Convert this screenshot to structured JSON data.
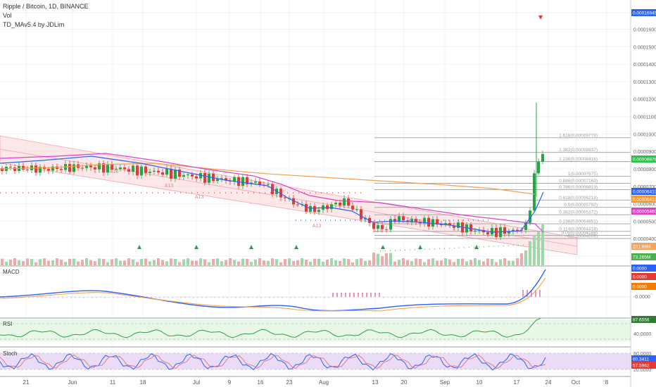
{
  "header": {
    "symbol_line": "Ripple / Bitcoin, 1D, BINANCE",
    "vol_label": "Vol",
    "indicator_label": "TD_MAv5.4 by JDLim"
  },
  "chart_data": [
    {
      "type": "candlestick",
      "pane": "price",
      "x_ticks": [
        "21",
        "Jun",
        "11",
        "18",
        "Jul",
        "9",
        "16",
        "23",
        "Aug",
        "13",
        "20",
        "Sep",
        "10",
        "17",
        "24",
        "Oct",
        "8"
      ],
      "y_ticks": [
        "0.00016945",
        "0.00016000",
        "0.00015000",
        "0.00014000",
        "0.00013000",
        "0.00012000",
        "0.00011000",
        "0.00010000",
        "0.00009000",
        "0.00008000",
        "0.00007000",
        "0.00006000",
        "0.00005000",
        "0.00004000",
        "0.00003000"
      ],
      "price_badges": [
        {
          "text": "0.00016945",
          "color": "#2962ff"
        },
        {
          "text": "0.00008878",
          "color": "#26c54a"
        },
        {
          "text": "0.00006413",
          "color": "#2962ff"
        },
        {
          "text": "0.00006413",
          "color": "#f59a32"
        },
        {
          "text": "0.00005460",
          "color": "#e040c8"
        },
        {
          "text": "181.99M",
          "color": "#f7a35c"
        },
        {
          "text": "73.265M",
          "color": "#4caf50"
        }
      ],
      "fib_levels": [
        {
          "label": "1.618(0.00009778)",
          "value": 9.778e-05
        },
        {
          "label": "1.382(0.00008937)",
          "value": 8.937e-05
        },
        {
          "label": "1.236(0.00008416)",
          "value": 8.416e-05
        },
        {
          "label": "1(0.00007575)",
          "value": 7.575e-05
        },
        {
          "label": "0.886(0.00007169)",
          "value": 7.169e-05
        },
        {
          "label": "0.786(0.00006813)",
          "value": 6.813e-05
        },
        {
          "label": "0.618(0.00006213)",
          "value": 6.213e-05
        },
        {
          "label": "0.5(0.00005792)",
          "value": 5.792e-05
        },
        {
          "label": "0.382(0.00005372)",
          "value": 5.372e-05
        },
        {
          "label": "0.236(0.00004851)",
          "value": 4.851e-05
        },
        {
          "label": "0.114(0.00004418)",
          "value": 4.418e-05
        },
        {
          "label": "0.05(0.00004188)",
          "value": 4.188e-05
        },
        {
          "label": "0(0.00004009)",
          "value": 4.009e-05
        }
      ],
      "annotations": [
        "A13",
        "A13",
        "A13",
        "A13",
        "A13"
      ],
      "series": [
        {
          "name": "price",
          "color_up": "#4caf50",
          "color_down": "#e53935"
        },
        {
          "name": "ma_orange",
          "color": "#f5a04a"
        },
        {
          "name": "ma_pink",
          "color": "#e040c8"
        },
        {
          "name": "ma_blue",
          "color": "#2962ff"
        }
      ]
    },
    {
      "type": "line",
      "pane": "MACD",
      "title": "MACD",
      "y_ticks": [
        "0.0000",
        "-0.0000"
      ],
      "badges": [
        {
          "text": "0.0000",
          "color": "#2962ff"
        },
        {
          "text": "0.0000",
          "color": "#e53935"
        },
        {
          "text": "0.0000",
          "color": "#f57c00"
        }
      ]
    },
    {
      "type": "line",
      "pane": "RSI",
      "title": "RSI",
      "y_ticks": [
        "40.0000"
      ],
      "badges": [
        {
          "text": "87.6556",
          "color": "#2e7d32"
        }
      ]
    },
    {
      "type": "line",
      "pane": "Stoch",
      "title": "Stoch",
      "y_ticks": [
        "80.0000",
        "20.0000"
      ],
      "badges": [
        {
          "text": "60.3411",
          "color": "#2962ff"
        },
        {
          "text": "57.5962",
          "color": "#e53935"
        }
      ]
    }
  ]
}
